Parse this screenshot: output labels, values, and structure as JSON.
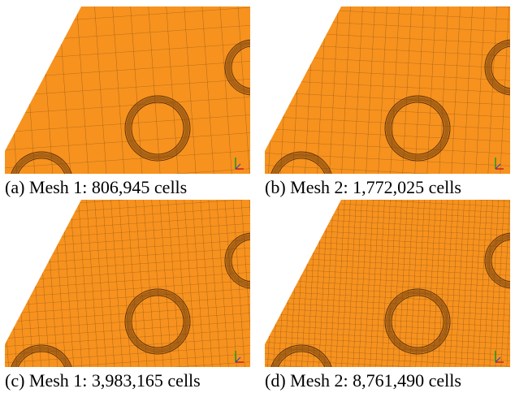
{
  "panels": [
    {
      "caption": "(a) Mesh 1: 806,945 cells"
    },
    {
      "caption": "(b) Mesh 2: 1,772,025 cells"
    },
    {
      "caption": "(c) Mesh 1: 3,983,165 cells"
    },
    {
      "caption": "(d) Mesh 2: 8,761,490 cells"
    }
  ]
}
